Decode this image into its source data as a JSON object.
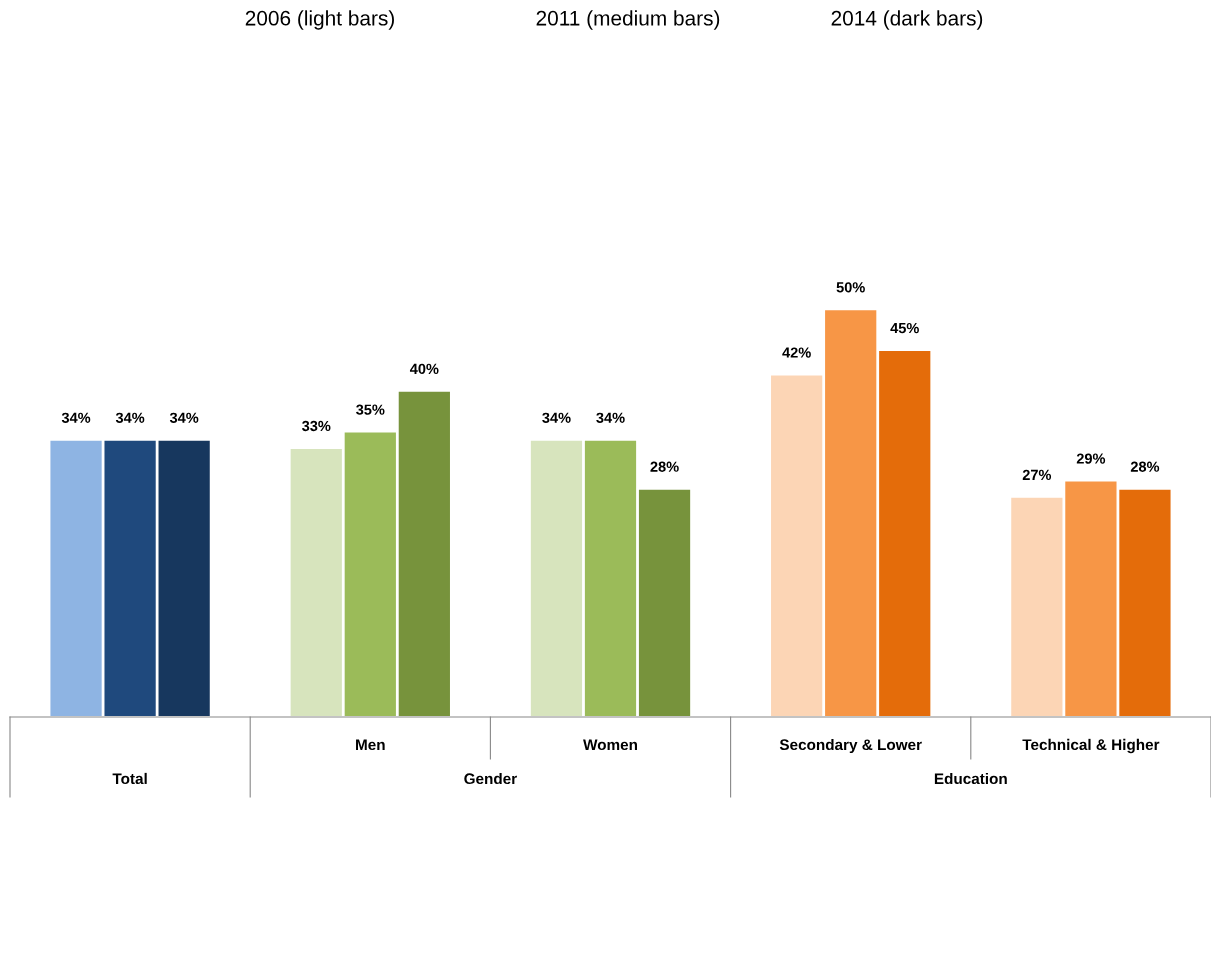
{
  "chart_data": {
    "type": "bar",
    "categories": [
      null,
      "Men",
      "Women",
      "Secondary & Lower",
      "Technical & Higher"
    ],
    "series": [
      {
        "values": [
          34,
          33,
          34,
          42,
          27
        ],
        "value_labels": [
          "34%",
          "33%",
          "34%",
          "42%",
          "27%"
        ],
        "colors": [
          "#8eb4e3",
          "#d7e4bd",
          "#d7e4bd",
          "#fcd5b5",
          "#fcd5b5"
        ]
      },
      {
        "values": [
          34,
          35,
          34,
          50,
          29
        ],
        "value_labels": [
          "34%",
          "35%",
          "34%",
          "50%",
          "29%"
        ],
        "colors": [
          "#1f497d",
          "#9bbb59",
          "#9bbb59",
          "#f79646",
          "#f79646"
        ]
      },
      {
        "values": [
          34,
          40,
          28,
          45,
          28
        ],
        "value_labels": [
          "34%",
          "40%",
          "28%",
          "45%",
          "28%"
        ],
        "colors": [
          "#17375e",
          "#77933c",
          "#77933c",
          "#e46c0a",
          "#e46c0a"
        ]
      }
    ],
    "annotations": [
      "2006 (light bars)",
      "2011 (medium bars)",
      "2014 (dark bars)",
      "Total",
      "Gender",
      "Education"
    ]
  }
}
